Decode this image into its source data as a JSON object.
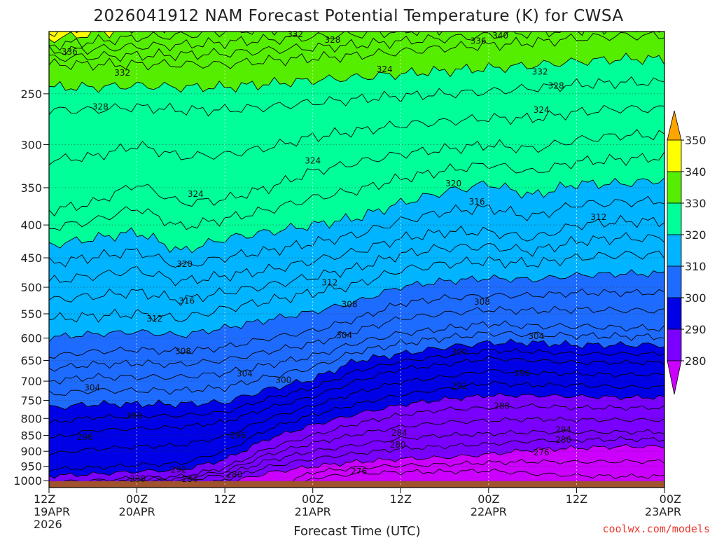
{
  "chart_data": {
    "type": "contour-filled",
    "title": "2026041912 NAM Forecast Potential Temperature (K) for CWSA",
    "xlabel": "Forecast Time (UTC)",
    "ylabel": "",
    "y_ticks": [
      "250",
      "300",
      "350",
      "400",
      "450",
      "500",
      "550",
      "600",
      "650",
      "700",
      "750",
      "800",
      "850",
      "900",
      "950",
      "1000"
    ],
    "y_ticks_hpa": [
      250,
      300,
      350,
      400,
      450,
      500,
      550,
      600,
      650,
      700,
      750,
      800,
      850,
      900,
      950,
      1000
    ],
    "ylim_hpa": [
      1025,
      200
    ],
    "y_scale": "log-pressure",
    "x_ticks": [
      {
        "hours": 0,
        "line1": "12Z",
        "line2": "19APR",
        "line3": "2026"
      },
      {
        "hours": 12,
        "line1": "00Z",
        "line2": "20APR",
        "line3": ""
      },
      {
        "hours": 24,
        "line1": "12Z",
        "line2": "",
        "line3": ""
      },
      {
        "hours": 36,
        "line1": "00Z",
        "line2": "21APR",
        "line3": ""
      },
      {
        "hours": 48,
        "line1": "12Z",
        "line2": "",
        "line3": ""
      },
      {
        "hours": 60,
        "line1": "00Z",
        "line2": "22APR",
        "line3": ""
      },
      {
        "hours": 72,
        "line1": "12Z",
        "line2": "",
        "line3": ""
      },
      {
        "hours": 84,
        "line1": "00Z",
        "line2": "23APR",
        "line3": ""
      }
    ],
    "xlim_hours": [
      0,
      84
    ],
    "grid": true,
    "colorbar": {
      "labels": [
        "350",
        "340",
        "330",
        "320",
        "310",
        "300",
        "290",
        "280"
      ],
      "levels": [
        280,
        290,
        300,
        310,
        320,
        330,
        340,
        350
      ],
      "colors": [
        "#cc00ff",
        "#7a00ff",
        "#0000e6",
        "#1e6cff",
        "#00b4ff",
        "#00ff99",
        "#55ee00",
        "#ffff00",
        "#ffa500"
      ],
      "placement": "right"
    },
    "contour_interval_K": 2,
    "contour_levels": [
      276,
      278,
      280,
      282,
      284,
      286,
      288,
      290,
      292,
      294,
      296,
      298,
      300,
      302,
      304,
      306,
      308,
      310,
      312,
      314,
      316,
      318,
      320,
      322,
      324,
      326,
      328,
      330,
      332,
      334,
      336,
      338,
      340,
      342
    ],
    "profile_hours": [
      0,
      6,
      12,
      18,
      24,
      30,
      36,
      42,
      48,
      54,
      60,
      66,
      72,
      78,
      84
    ],
    "level_heights_hpa": {
      "276": [
        1100,
        1100,
        1100,
        1100,
        1100,
        1100,
        990,
        975,
        970,
        968,
        965,
        975,
        982,
        985,
        985
      ],
      "280": [
        1100,
        1100,
        1100,
        1100,
        1010,
        972,
        950,
        935,
        925,
        920,
        910,
        895,
        890,
        885,
        885
      ],
      "284": [
        1020,
        1015,
        1005,
        1000,
        980,
        930,
        900,
        880,
        860,
        850,
        845,
        840,
        840,
        840,
        840
      ],
      "288": [
        1005,
        1000,
        990,
        985,
        955,
        890,
        850,
        815,
        790,
        775,
        770,
        765,
        770,
        770,
        770
      ],
      "292": [
        960,
        955,
        945,
        940,
        900,
        830,
        790,
        760,
        735,
        720,
        705,
        710,
        710,
        715,
        715
      ],
      "296": [
        860,
        835,
        830,
        825,
        810,
        770,
        740,
        700,
        670,
        660,
        645,
        650,
        655,
        655,
        655
      ],
      "300": [
        770,
        760,
        760,
        760,
        755,
        720,
        695,
        650,
        635,
        620,
        610,
        610,
        615,
        615,
        615
      ],
      "304": [
        700,
        690,
        690,
        690,
        680,
        660,
        640,
        610,
        590,
        580,
        570,
        575,
        575,
        578,
        580
      ],
      "308": [
        640,
        630,
        625,
        630,
        620,
        600,
        585,
        560,
        530,
        520,
        515,
        515,
        510,
        510,
        510
      ],
      "312": [
        560,
        555,
        550,
        560,
        540,
        525,
        510,
        495,
        470,
        460,
        455,
        460,
        450,
        445,
        445
      ],
      "316": [
        490,
        480,
        470,
        490,
        480,
        470,
        455,
        440,
        420,
        410,
        410,
        420,
        400,
        395,
        395
      ],
      "320": [
        430,
        420,
        410,
        440,
        420,
        410,
        400,
        390,
        370,
        355,
        345,
        360,
        345,
        345,
        340
      ],
      "324": [
        380,
        370,
        345,
        370,
        365,
        350,
        330,
        320,
        310,
        305,
        300,
        305,
        295,
        290,
        290
      ],
      "328": [
        265,
        265,
        262,
        265,
        265,
        262,
        258,
        255,
        252,
        250,
        248,
        245,
        242,
        240,
        240
      ],
      "332": [
        225,
        225,
        225,
        225,
        225,
        222,
        220,
        218,
        215,
        212,
        210,
        208,
        205,
        203,
        203
      ],
      "336": [
        215,
        213,
        211,
        210,
        208,
        206,
        204,
        202,
        200,
        198,
        196,
        194,
        193,
        192,
        192
      ]
    },
    "contour_labels": [
      {
        "text": "336",
        "hours": 2.8,
        "hpa": 215
      },
      {
        "text": "332",
        "hours": 10.0,
        "hpa": 232
      },
      {
        "text": "328",
        "hours": 7.0,
        "hpa": 262
      },
      {
        "text": "332",
        "hours": 33.6,
        "hpa": 202
      },
      {
        "text": "328",
        "hours": 38.7,
        "hpa": 206
      },
      {
        "text": "324",
        "hours": 45.8,
        "hpa": 229
      },
      {
        "text": "336",
        "hours": 58.6,
        "hpa": 207
      },
      {
        "text": "340",
        "hours": 61.6,
        "hpa": 203
      },
      {
        "text": "332",
        "hours": 67.0,
        "hpa": 231
      },
      {
        "text": "328",
        "hours": 69.2,
        "hpa": 243
      },
      {
        "text": "324",
        "hours": 67.2,
        "hpa": 265
      },
      {
        "text": "324",
        "hours": 36.0,
        "hpa": 318
      },
      {
        "text": "324",
        "hours": 20.0,
        "hpa": 358
      },
      {
        "text": "320",
        "hours": 55.2,
        "hpa": 345
      },
      {
        "text": "316",
        "hours": 58.4,
        "hpa": 368
      },
      {
        "text": "312",
        "hours": 75.0,
        "hpa": 389
      },
      {
        "text": "320",
        "hours": 18.5,
        "hpa": 460
      },
      {
        "text": "316",
        "hours": 18.8,
        "hpa": 525
      },
      {
        "text": "312",
        "hours": 14.4,
        "hpa": 560
      },
      {
        "text": "312",
        "hours": 38.3,
        "hpa": 492
      },
      {
        "text": "308",
        "hours": 41.0,
        "hpa": 532
      },
      {
        "text": "308",
        "hours": 59.1,
        "hpa": 527
      },
      {
        "text": "304",
        "hours": 40.3,
        "hpa": 594
      },
      {
        "text": "304",
        "hours": 66.5,
        "hpa": 596
      },
      {
        "text": "308",
        "hours": 18.3,
        "hpa": 629
      },
      {
        "text": "304",
        "hours": 26.7,
        "hpa": 682
      },
      {
        "text": "300",
        "hours": 32.0,
        "hpa": 697
      },
      {
        "text": "300",
        "hours": 56.0,
        "hpa": 631
      },
      {
        "text": "304",
        "hours": 5.9,
        "hpa": 717
      },
      {
        "text": "296",
        "hours": 64.6,
        "hpa": 681
      },
      {
        "text": "292",
        "hours": 56.0,
        "hpa": 712
      },
      {
        "text": "288",
        "hours": 61.8,
        "hpa": 765
      },
      {
        "text": "300",
        "hours": 11.6,
        "hpa": 792
      },
      {
        "text": "296",
        "hours": 4.9,
        "hpa": 856
      },
      {
        "text": "296",
        "hours": 25.8,
        "hpa": 850
      },
      {
        "text": "284",
        "hours": 47.8,
        "hpa": 843
      },
      {
        "text": "280",
        "hours": 47.6,
        "hpa": 880
      },
      {
        "text": "284",
        "hours": 70.2,
        "hpa": 833
      },
      {
        "text": "280",
        "hours": 70.2,
        "hpa": 864
      },
      {
        "text": "276",
        "hours": 67.2,
        "hpa": 904
      },
      {
        "text": "276",
        "hours": 42.3,
        "hpa": 967
      },
      {
        "text": "292",
        "hours": 17.7,
        "hpa": 961
      },
      {
        "text": "288",
        "hours": 12.1,
        "hpa": 993
      },
      {
        "text": "284",
        "hours": 19.2,
        "hpa": 994
      },
      {
        "text": "280",
        "hours": 25.3,
        "hpa": 978
      }
    ],
    "terrain_top_hpa": 1002,
    "terrain_color": "#a0522d"
  },
  "footer": {
    "credit": "coolwx.com/models"
  }
}
